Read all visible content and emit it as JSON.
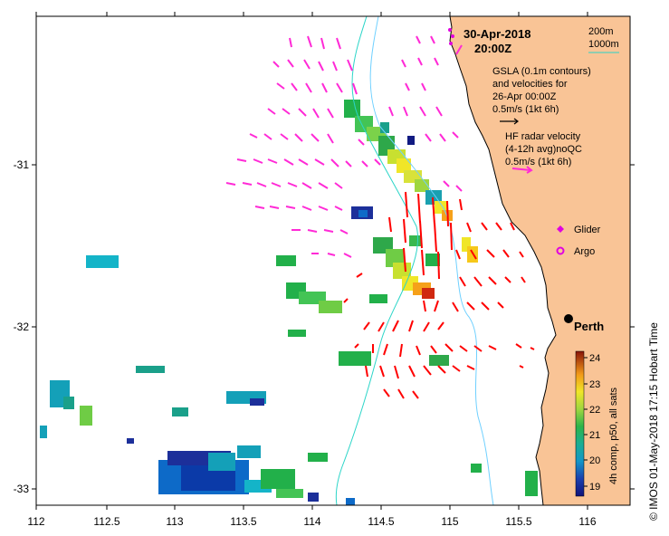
{
  "date": "30-Apr-2018",
  "time": "20:00Z",
  "bathy": {
    "c200": "200m",
    "c1000": "1000m",
    "c200_color": "#6fd0ff",
    "c1000_color": "#2bd5c8"
  },
  "gsla": {
    "line1": "GSLA (0.1m contours)",
    "line2": "and velocities for",
    "line3": "26-Apr 00:00Z",
    "scale": "0.5m/s (1kt 6h)"
  },
  "hf": {
    "line1": "HF radar velocity",
    "line2": "(4-12h avg)noQC",
    "scale": "0.5m/s (1kt 6h)",
    "color": "#ff2ad6"
  },
  "legend": {
    "glider": "Glider",
    "argo": "Argo",
    "color": "#e000e0"
  },
  "city": "Perth",
  "colorbar": {
    "label": "4h comp, p50, all sats",
    "ticks": [
      "24",
      "23",
      "22",
      "21",
      "20",
      "19"
    ]
  },
  "credit": "© IMOS 01-May-2018 17:15 Hobart Time",
  "axes": {
    "x_ticks": [
      "112",
      "112.5",
      "113",
      "113.5",
      "114",
      "114.5",
      "115",
      "115.5",
      "116"
    ],
    "y_ticks": [
      "-31",
      "-32",
      "-33"
    ]
  },
  "colors": {
    "land": "#f9c496",
    "current": "#ff0000",
    "hf": "#ff2ad6"
  }
}
